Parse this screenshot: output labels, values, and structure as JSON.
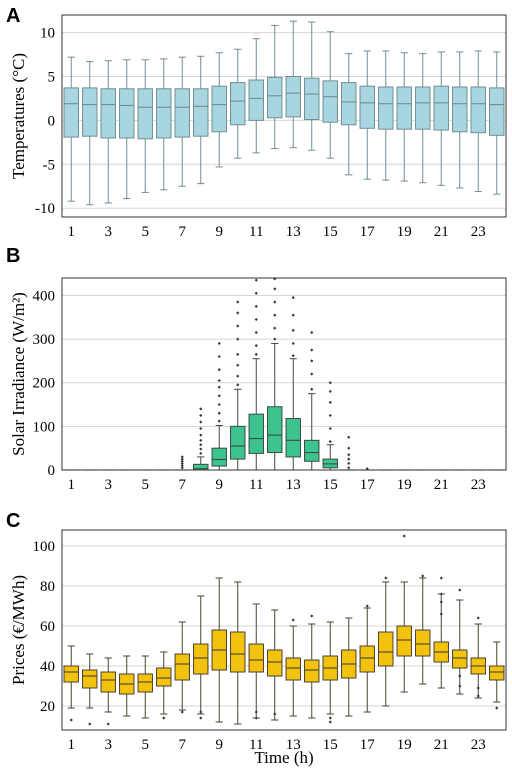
{
  "chart_data": [
    {
      "type": "box",
      "panel": "A",
      "ylabel": "Temperatures (°C)",
      "ylim": [
        -11,
        12
      ],
      "yticks": [
        -10,
        -5,
        0,
        5,
        10
      ],
      "xticks": [
        1,
        3,
        5,
        7,
        9,
        11,
        13,
        15,
        17,
        19,
        21,
        23
      ],
      "color": "#a8d6e0",
      "grid": true,
      "hours": [
        1,
        2,
        3,
        4,
        5,
        6,
        7,
        8,
        9,
        10,
        11,
        12,
        13,
        14,
        15,
        16,
        17,
        18,
        19,
        20,
        21,
        22,
        23,
        24
      ],
      "whisker_low": [
        -9.2,
        -9.6,
        -9.4,
        -8.9,
        -8.2,
        -7.9,
        -7.5,
        -7.2,
        -5.3,
        -4.3,
        -3.7,
        -3.2,
        -3.1,
        -3.4,
        -4.3,
        -6.2,
        -6.7,
        -6.8,
        -6.9,
        -7.1,
        -7.4,
        -7.7,
        -8.1,
        -8.4
      ],
      "q1": [
        -1.9,
        -1.8,
        -2.0,
        -2.0,
        -2.1,
        -2.0,
        -1.9,
        -1.8,
        -1.3,
        -0.5,
        0.0,
        0.3,
        0.4,
        0.1,
        -0.2,
        -0.5,
        -0.9,
        -1.0,
        -1.0,
        -1.0,
        -1.1,
        -1.3,
        -1.4,
        -1.7
      ],
      "median": [
        1.9,
        1.8,
        1.8,
        1.7,
        1.5,
        1.5,
        1.5,
        1.6,
        1.8,
        2.2,
        2.5,
        2.8,
        3.1,
        3.0,
        2.7,
        2.1,
        2.0,
        1.9,
        1.9,
        2.0,
        2.0,
        1.9,
        1.9,
        1.8
      ],
      "q3": [
        3.7,
        3.7,
        3.6,
        3.6,
        3.6,
        3.6,
        3.6,
        3.6,
        3.9,
        4.3,
        4.6,
        4.9,
        5.0,
        4.8,
        4.5,
        4.3,
        3.9,
        3.8,
        3.8,
        3.8,
        3.9,
        3.8,
        3.8,
        3.7
      ],
      "whisker_high": [
        7.2,
        6.7,
        6.8,
        6.9,
        6.9,
        7.0,
        7.2,
        7.3,
        7.7,
        8.1,
        9.3,
        10.8,
        11.3,
        11.2,
        10.1,
        7.6,
        7.9,
        7.9,
        7.7,
        7.6,
        7.8,
        7.8,
        7.9,
        7.8
      ],
      "outliers": []
    },
    {
      "type": "box",
      "panel": "B",
      "ylabel": "Solar Irradiance (W/m²)",
      "ylim": [
        0,
        440
      ],
      "yticks": [
        0,
        100,
        200,
        300,
        400
      ],
      "xticks": [
        1,
        3,
        5,
        7,
        9,
        11,
        13,
        15,
        17,
        19,
        21,
        23
      ],
      "color": "#3dc48e",
      "grid": true,
      "hours": [
        1,
        2,
        3,
        4,
        5,
        6,
        7,
        8,
        9,
        10,
        11,
        12,
        13,
        14,
        15,
        16,
        17,
        18,
        19,
        20,
        21,
        22,
        23,
        24
      ],
      "whisker_low": [
        0,
        0,
        0,
        0,
        0,
        0,
        0,
        0,
        0,
        0,
        0,
        0,
        0,
        0,
        0,
        0,
        0,
        0,
        0,
        0,
        0,
        0,
        0,
        0
      ],
      "q1": [
        0,
        0,
        0,
        0,
        0,
        0,
        0,
        0,
        9,
        25,
        38,
        40,
        30,
        20,
        5,
        0,
        0,
        0,
        0,
        0,
        0,
        0,
        0,
        0
      ],
      "median": [
        0,
        0,
        0,
        0,
        0,
        0,
        0,
        3,
        24,
        55,
        72,
        80,
        68,
        40,
        14,
        0,
        0,
        0,
        0,
        0,
        0,
        0,
        0,
        0
      ],
      "q3": [
        0,
        0,
        0,
        0,
        0,
        0,
        0,
        13,
        50,
        100,
        128,
        145,
        118,
        68,
        25,
        0,
        0,
        0,
        0,
        0,
        0,
        0,
        0,
        0
      ],
      "whisker_high": [
        0,
        0,
        0,
        0,
        0,
        0,
        0,
        30,
        102,
        185,
        255,
        290,
        255,
        175,
        58,
        0,
        0,
        0,
        0,
        0,
        0,
        0,
        0,
        0
      ],
      "outliers": [
        [
          7,
          5
        ],
        [
          7,
          10
        ],
        [
          7,
          15
        ],
        [
          7,
          20
        ],
        [
          7,
          25
        ],
        [
          7,
          30
        ],
        [
          8,
          38
        ],
        [
          8,
          48
        ],
        [
          8,
          58
        ],
        [
          8,
          68
        ],
        [
          8,
          80
        ],
        [
          8,
          95
        ],
        [
          8,
          110
        ],
        [
          8,
          125
        ],
        [
          8,
          140
        ],
        [
          9,
          112
        ],
        [
          9,
          130
        ],
        [
          9,
          150
        ],
        [
          9,
          170
        ],
        [
          9,
          190
        ],
        [
          9,
          205
        ],
        [
          9,
          230
        ],
        [
          9,
          260
        ],
        [
          9,
          290
        ],
        [
          10,
          195
        ],
        [
          10,
          215
        ],
        [
          10,
          240
        ],
        [
          10,
          265
        ],
        [
          10,
          300
        ],
        [
          10,
          330
        ],
        [
          10,
          360
        ],
        [
          10,
          385
        ],
        [
          11,
          265
        ],
        [
          11,
          285
        ],
        [
          11,
          315
        ],
        [
          11,
          345
        ],
        [
          11,
          375
        ],
        [
          11,
          405
        ],
        [
          11,
          435
        ],
        [
          12,
          300
        ],
        [
          12,
          325
        ],
        [
          12,
          355
        ],
        [
          12,
          385
        ],
        [
          12,
          415
        ],
        [
          12,
          438
        ],
        [
          13,
          262
        ],
        [
          13,
          290
        ],
        [
          13,
          320
        ],
        [
          13,
          355
        ],
        [
          13,
          395
        ],
        [
          14,
          185
        ],
        [
          14,
          220
        ],
        [
          14,
          250
        ],
        [
          14,
          275
        ],
        [
          14,
          315
        ],
        [
          15,
          65
        ],
        [
          15,
          95
        ],
        [
          15,
          125
        ],
        [
          15,
          155
        ],
        [
          15,
          180
        ],
        [
          15,
          200
        ],
        [
          16,
          5
        ],
        [
          16,
          15
        ],
        [
          16,
          25
        ],
        [
          16,
          35
        ],
        [
          16,
          50
        ],
        [
          16,
          75
        ],
        [
          17,
          3
        ]
      ]
    },
    {
      "type": "box",
      "panel": "C",
      "xlabel": "Time (h)",
      "ylabel": "Prices (€/MWh)",
      "ylim": [
        8,
        108
      ],
      "yticks": [
        20,
        40,
        60,
        80,
        100
      ],
      "xticks": [
        1,
        3,
        5,
        7,
        9,
        11,
        13,
        15,
        17,
        19,
        21,
        23
      ],
      "color": "#f2c20e",
      "grid": true,
      "hours": [
        1,
        2,
        3,
        4,
        5,
        6,
        7,
        8,
        9,
        10,
        11,
        12,
        13,
        14,
        15,
        16,
        17,
        18,
        19,
        20,
        21,
        22,
        23,
        24
      ],
      "whisker_low": [
        19,
        19,
        17,
        15,
        14,
        16,
        18,
        16,
        12,
        11,
        14,
        13,
        15,
        14,
        16,
        15,
        17,
        20,
        27,
        31,
        29,
        26,
        24,
        22
      ],
      "q1": [
        32,
        29,
        27,
        26,
        27,
        30,
        33,
        36,
        38,
        37,
        37,
        35,
        33,
        32,
        33,
        34,
        37,
        40,
        45,
        45,
        42,
        39,
        36,
        33
      ],
      "median": [
        37,
        35,
        33,
        31,
        32,
        34,
        41,
        44,
        48,
        46,
        43,
        42,
        39,
        38,
        39,
        41,
        44,
        47,
        53,
        51,
        47,
        44,
        40,
        37
      ],
      "q3": [
        40,
        38,
        37,
        36,
        36,
        39,
        46,
        51,
        58,
        57,
        51,
        48,
        44,
        43,
        45,
        48,
        50,
        57,
        60,
        58,
        52,
        48,
        44,
        40
      ],
      "whisker_high": [
        50,
        46,
        44,
        45,
        45,
        47,
        62,
        75,
        84,
        82,
        71,
        68,
        60,
        61,
        62,
        64,
        69,
        82,
        82,
        84,
        76,
        73,
        61,
        52
      ],
      "outliers": [
        [
          1,
          13
        ],
        [
          2,
          11
        ],
        [
          3,
          11
        ],
        [
          6,
          14
        ],
        [
          7,
          17
        ],
        [
          8,
          14
        ],
        [
          8,
          17
        ],
        [
          11,
          14
        ],
        [
          11,
          17
        ],
        [
          12,
          16
        ],
        [
          13,
          63
        ],
        [
          14,
          65
        ],
        [
          15,
          12
        ],
        [
          15,
          14
        ],
        [
          17,
          70
        ],
        [
          18,
          84
        ],
        [
          19,
          105
        ],
        [
          20,
          85
        ],
        [
          21,
          84
        ],
        [
          21,
          66
        ],
        [
          21,
          72
        ],
        [
          21,
          76
        ],
        [
          22,
          78
        ],
        [
          22,
          30
        ],
        [
          22,
          35
        ],
        [
          23,
          64
        ],
        [
          23,
          25
        ],
        [
          23,
          29
        ],
        [
          24,
          19
        ]
      ]
    }
  ]
}
